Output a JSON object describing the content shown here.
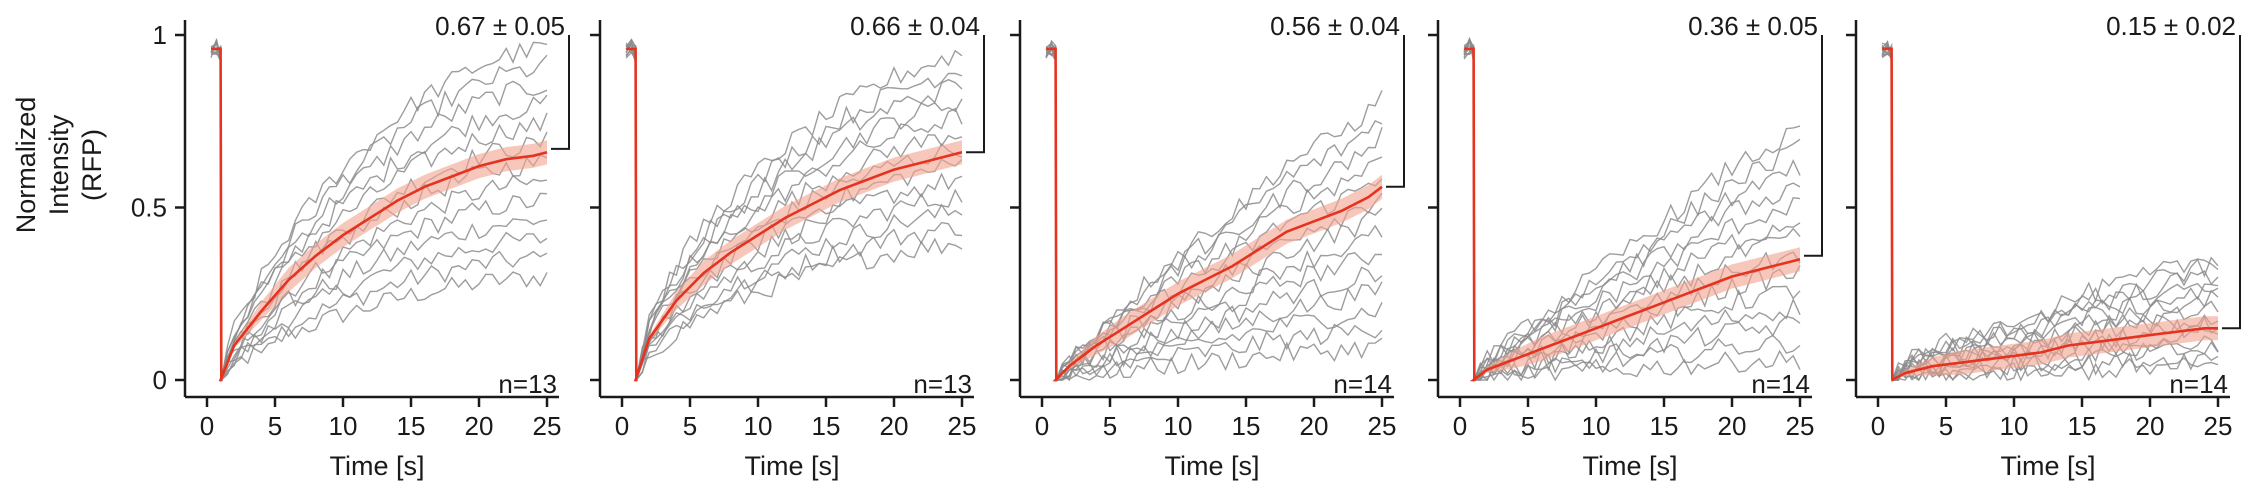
{
  "figure": {
    "ylabel": "Normalized Intensity (RFP)",
    "xlabel": "Time [s]",
    "colors": {
      "mean": "#e5331f",
      "band": "#f4a28f",
      "trace": "#8c8c8c",
      "axis": "#1a1a1a"
    }
  },
  "chart_data": [
    {
      "type": "line",
      "title": "",
      "xlabel": "Time [s]",
      "ylabel": "Normalized Intensity (RFP)",
      "xlim": [
        0,
        25
      ],
      "ylim": [
        0,
        1
      ],
      "xticks": [
        0,
        5,
        10,
        15,
        20,
        25
      ],
      "yticks": [
        0,
        0.5,
        1
      ],
      "ytick_labels": [
        "0",
        "0.5",
        "1"
      ],
      "plateau_label": "0.67 ± 0.05",
      "plateau": 0.67,
      "n_label": "n=13",
      "n": 13,
      "mean_series": {
        "name": "",
        "x": [
          1,
          2,
          4,
          6,
          8,
          10,
          12,
          14,
          16,
          18,
          20,
          22,
          24,
          25
        ],
        "values": [
          0,
          0.1,
          0.2,
          0.29,
          0.36,
          0.42,
          0.47,
          0.52,
          0.56,
          0.59,
          0.62,
          0.64,
          0.65,
          0.66
        ]
      },
      "traces_spread": [
        0.3,
        0.97
      ]
    },
    {
      "type": "line",
      "title": "",
      "xlabel": "Time [s]",
      "ylabel": "",
      "xlim": [
        0,
        25
      ],
      "ylim": [
        0,
        1
      ],
      "xticks": [
        0,
        5,
        10,
        15,
        20,
        25
      ],
      "yticks": [
        0,
        0.5,
        1
      ],
      "ytick_labels": [
        "",
        "",
        ""
      ],
      "plateau_label": "0.66 ± 0.04",
      "plateau": 0.66,
      "n_label": "n=13",
      "n": 13,
      "mean_series": {
        "name": "",
        "x": [
          1,
          2,
          4,
          6,
          8,
          10,
          12,
          14,
          16,
          18,
          20,
          22,
          24,
          25
        ],
        "values": [
          0,
          0.12,
          0.23,
          0.31,
          0.37,
          0.42,
          0.47,
          0.51,
          0.55,
          0.58,
          0.61,
          0.63,
          0.65,
          0.66
        ]
      },
      "traces_spread": [
        0.4,
        0.95
      ]
    },
    {
      "type": "line",
      "title": "",
      "xlabel": "Time [s]",
      "ylabel": "",
      "xlim": [
        0,
        25
      ],
      "ylim": [
        0,
        1
      ],
      "xticks": [
        0,
        5,
        10,
        15,
        20,
        25
      ],
      "yticks": [
        0,
        0.5,
        1
      ],
      "ytick_labels": [
        "",
        "",
        ""
      ],
      "plateau_label": "0.56 ± 0.04",
      "plateau": 0.56,
      "n_label": "n=14",
      "n": 14,
      "mean_series": {
        "name": "",
        "x": [
          1,
          2,
          4,
          6,
          8,
          10,
          12,
          14,
          16,
          18,
          20,
          22,
          24,
          25
        ],
        "values": [
          0,
          0.04,
          0.1,
          0.15,
          0.2,
          0.25,
          0.29,
          0.33,
          0.38,
          0.43,
          0.46,
          0.49,
          0.53,
          0.56
        ]
      },
      "traces_spread": [
        0.1,
        0.82
      ]
    },
    {
      "type": "line",
      "title": "",
      "xlabel": "Time [s]",
      "ylabel": "",
      "xlim": [
        0,
        25
      ],
      "ylim": [
        0,
        1
      ],
      "xticks": [
        0,
        5,
        10,
        15,
        20,
        25
      ],
      "yticks": [
        0,
        0.5,
        1
      ],
      "ytick_labels": [
        "",
        "",
        ""
      ],
      "plateau_label": "0.36 ± 0.05",
      "plateau": 0.36,
      "n_label": "n=14",
      "n": 14,
      "mean_series": {
        "name": "",
        "x": [
          1,
          2,
          4,
          6,
          8,
          10,
          12,
          14,
          16,
          18,
          20,
          22,
          24,
          25
        ],
        "values": [
          0,
          0.03,
          0.06,
          0.09,
          0.12,
          0.15,
          0.18,
          0.21,
          0.24,
          0.27,
          0.3,
          0.32,
          0.34,
          0.35
        ]
      },
      "traces_spread": [
        0.06,
        0.72
      ]
    },
    {
      "type": "line",
      "title": "",
      "xlabel": "Time [s]",
      "ylabel": "",
      "xlim": [
        0,
        25
      ],
      "ylim": [
        0,
        1
      ],
      "xticks": [
        0,
        5,
        10,
        15,
        20,
        25
      ],
      "yticks": [
        0,
        0.5,
        1
      ],
      "ytick_labels": [
        "",
        "",
        ""
      ],
      "plateau_label": "0.15 ± 0.02",
      "plateau": 0.15,
      "n_label": "n=14",
      "n": 14,
      "mean_series": {
        "name": "",
        "x": [
          1,
          2,
          4,
          6,
          8,
          10,
          12,
          14,
          16,
          18,
          20,
          22,
          24,
          25
        ],
        "values": [
          0,
          0.02,
          0.04,
          0.05,
          0.06,
          0.07,
          0.08,
          0.1,
          0.11,
          0.12,
          0.13,
          0.14,
          0.15,
          0.15
        ]
      },
      "traces_spread": [
        0.04,
        0.35
      ]
    }
  ]
}
